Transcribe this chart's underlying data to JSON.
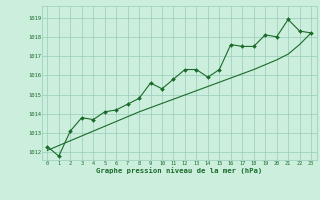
{
  "xlabel": "Graphe pression niveau de la mer (hPa)",
  "bg_color": "#cceedd",
  "grid_color": "#99ccbb",
  "line_color": "#1a6b2a",
  "x_ticks": [
    0,
    1,
    2,
    3,
    4,
    5,
    6,
    7,
    8,
    9,
    10,
    11,
    12,
    13,
    14,
    15,
    16,
    17,
    18,
    19,
    20,
    21,
    22,
    23
  ],
  "y_ticks": [
    1012,
    1013,
    1014,
    1015,
    1016,
    1017,
    1018,
    1019
  ],
  "ylim": [
    1011.6,
    1019.6
  ],
  "xlim": [
    -0.5,
    23.5
  ],
  "series1": [
    1012.3,
    1011.8,
    1013.1,
    1013.8,
    1013.7,
    1014.1,
    1014.2,
    1014.5,
    1014.8,
    1015.6,
    1015.3,
    1015.8,
    1016.3,
    1016.3,
    1015.9,
    1016.3,
    1017.6,
    1017.5,
    1017.5,
    1018.1,
    1018.0,
    1018.9,
    1018.3,
    1018.2
  ],
  "trend": [
    1012.1,
    1012.35,
    1012.6,
    1012.85,
    1013.1,
    1013.35,
    1013.6,
    1013.85,
    1014.1,
    1014.32,
    1014.54,
    1014.76,
    1014.98,
    1015.2,
    1015.42,
    1015.64,
    1015.86,
    1016.08,
    1016.3,
    1016.55,
    1016.8,
    1017.1,
    1017.6,
    1018.2
  ]
}
